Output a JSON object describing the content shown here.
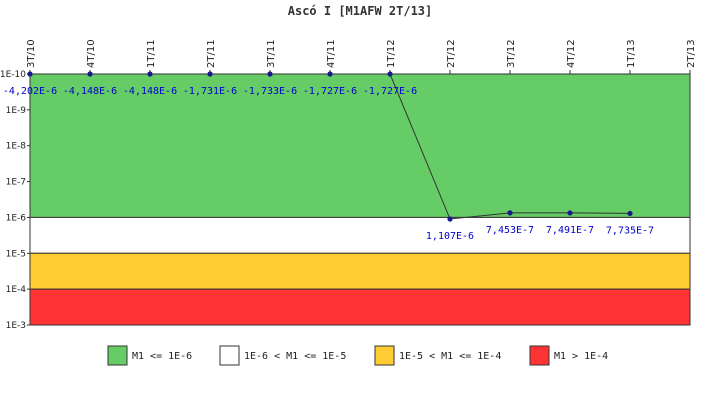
{
  "chart_data": {
    "type": "line",
    "title": "Ascó I [M1AFW 2T/13]",
    "xlabel": "",
    "ylabel": "",
    "y_scale": "log",
    "y_inverted": true,
    "ylim": [
      1e-10,
      0.001
    ],
    "y_tick_labels": [
      "1E-10",
      "1E-9",
      "1E-8",
      "1E-7",
      "1E-6",
      "1E-5",
      "1E-4",
      "1E-3"
    ],
    "categories": [
      "3T/10",
      "4T/10",
      "1T/11",
      "2T/11",
      "3T/11",
      "4T/11",
      "1T/12",
      "2T/12",
      "3T/12",
      "4T/12",
      "1T/13",
      "2T/13"
    ],
    "series": [
      {
        "values": [
          1e-10,
          1e-10,
          1e-10,
          1e-10,
          1e-10,
          1e-10,
          1e-10,
          1.107e-06,
          7.453e-07,
          7.491e-07,
          7.735e-07,
          null
        ],
        "data_labels": [
          "-4,202E-6",
          "-4,148E-6",
          "-4,148E-6",
          "-1,731E-6",
          "-1,733E-6",
          "-1,727E-6",
          "-1,727E-6",
          "1,107E-6",
          "7,453E-7",
          "7,491E-7",
          "7,735E-7",
          ""
        ],
        "color": "#1a1a8c"
      }
    ],
    "bands": [
      {
        "from": 1e-10,
        "to": 1e-06,
        "color": "#66cc66",
        "label": "M1 <= 1E-6"
      },
      {
        "from": 1e-06,
        "to": 1e-05,
        "color": "#ffffff",
        "label": "1E-6 < M1 <= 1E-5"
      },
      {
        "from": 1e-05,
        "to": 0.0001,
        "color": "#ffcc33",
        "label": "1E-5 < M1 <= 1E-4"
      },
      {
        "from": 0.0001,
        "to": 0.001,
        "color": "#ff3333",
        "label": "M1 > 1E-4"
      }
    ],
    "legend_position": "bottom",
    "grid": false
  }
}
